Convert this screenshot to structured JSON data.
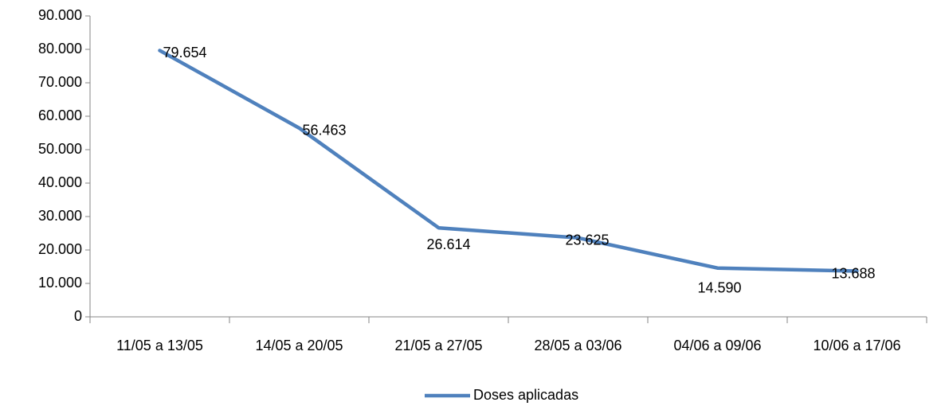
{
  "chart_data": {
    "type": "line",
    "categories": [
      "11/05 a 13/05",
      "14/05 a 20/05",
      "21/05 a 27/05",
      "28/05 a 03/06",
      "04/06 a 09/06",
      "10/06 a 17/06"
    ],
    "series": [
      {
        "name": "Doses aplicadas",
        "color": "#4f81bd",
        "values": [
          79654,
          56463,
          26614,
          23625,
          14590,
          13688
        ],
        "value_labels": [
          "79.654",
          "56.463",
          "26.614",
          "23.625",
          "14.590",
          "13.688"
        ]
      }
    ],
    "ylim": [
      0,
      90000
    ],
    "yticks": [
      0,
      {
        "value": 10000,
        "label": "10.000"
      },
      {
        "value": 20000,
        "label": "20.000"
      },
      {
        "value": 30000,
        "label": "30.000"
      },
      {
        "value": 40000,
        "label": "40.000"
      },
      {
        "value": 50000,
        "label": "50.000"
      },
      {
        "value": 60000,
        "label": "60.000"
      },
      {
        "value": 70000,
        "label": "70.000"
      },
      {
        "value": 80000,
        "label": "80.000"
      },
      {
        "value": 90000,
        "label": "90.000"
      }
    ],
    "legend": "bottom"
  }
}
